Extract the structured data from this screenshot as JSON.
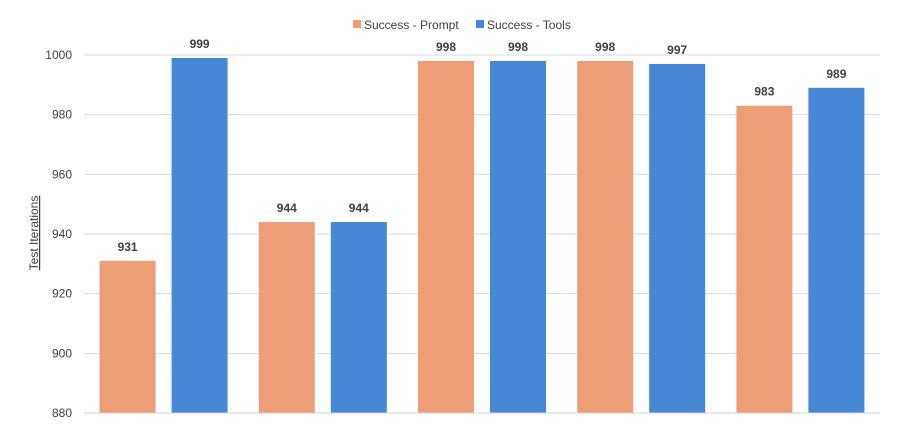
{
  "chart_data": {
    "type": "bar",
    "title": "",
    "xlabel": "",
    "ylabel": "Test Iterations",
    "categories": [
      "",
      "",
      "",
      "",
      ""
    ],
    "series": [
      {
        "name": "Success - Prompt",
        "color": "#ED9E77",
        "values": [
          931,
          944,
          998,
          998,
          983
        ]
      },
      {
        "name": "Success - Tools",
        "color": "#4687D6",
        "values": [
          999,
          944,
          998,
          997,
          989
        ]
      }
    ],
    "ylim": [
      880,
      1000
    ],
    "yticks": [
      880,
      900,
      920,
      940,
      960,
      980,
      1000
    ],
    "grid": true,
    "legend_position": "top-center",
    "data_labels": true
  }
}
